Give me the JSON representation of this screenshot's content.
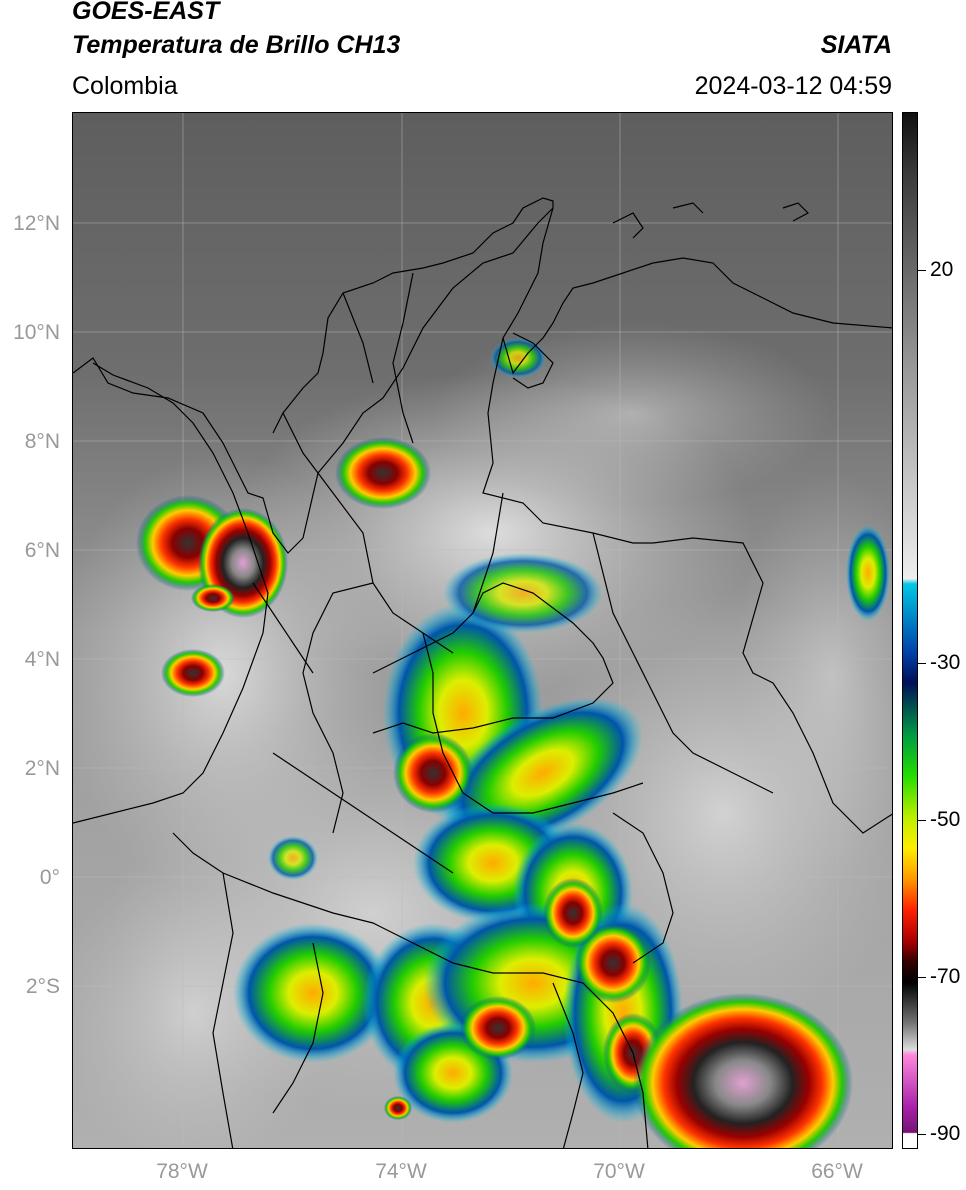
{
  "header": {
    "satellite": "GOES-EAST",
    "product": "Temperatura de Brillo CH13",
    "agency": "SIATA",
    "region": "Colombia",
    "datetime": "2024-03-12 04:59"
  },
  "map": {
    "lat_labels": [
      "12°N",
      "10°N",
      "8°N",
      "6°N",
      "4°N",
      "2°N",
      "0°",
      "2°S"
    ],
    "lon_labels": [
      "78°W",
      "74°W",
      "70°W",
      "66°W"
    ]
  },
  "colorbar": {
    "labels": [
      "20",
      "-30",
      "-50",
      "-70",
      "-90"
    ],
    "stops": [
      {
        "t": 0.0,
        "color": "#111111"
      },
      {
        "t": 0.06,
        "color": "#3c3c3c"
      },
      {
        "t": 0.25,
        "color": "#9a9a9a"
      },
      {
        "t": 0.45,
        "color": "#eeeeee"
      },
      {
        "t": 0.455,
        "color": "#00c8e6"
      },
      {
        "t": 0.52,
        "color": "#0044aa"
      },
      {
        "t": 0.55,
        "color": "#00105a"
      },
      {
        "t": 0.6,
        "color": "#009944"
      },
      {
        "t": 0.64,
        "color": "#22dd00"
      },
      {
        "t": 0.68,
        "color": "#bbee00"
      },
      {
        "t": 0.71,
        "color": "#ffee00"
      },
      {
        "t": 0.74,
        "color": "#ff9900"
      },
      {
        "t": 0.77,
        "color": "#ff2200"
      },
      {
        "t": 0.8,
        "color": "#aa0000"
      },
      {
        "t": 0.82,
        "color": "#330000"
      },
      {
        "t": 0.84,
        "color": "#000000"
      },
      {
        "t": 0.88,
        "color": "#777777"
      },
      {
        "t": 0.905,
        "color": "#dddddd"
      },
      {
        "t": 0.91,
        "color": "#ff88dd"
      },
      {
        "t": 0.96,
        "color": "#aa22aa"
      },
      {
        "t": 0.985,
        "color": "#771177"
      },
      {
        "t": 0.986,
        "color": "#ffffff"
      },
      {
        "t": 1.0,
        "color": "#ffffff"
      }
    ]
  }
}
